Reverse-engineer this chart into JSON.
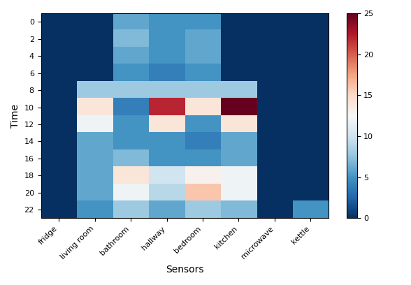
{
  "sensors": [
    "fridge",
    "living room",
    "bathroom",
    "hallway",
    "bedroom",
    "kitchen",
    "microwave",
    "kettle"
  ],
  "vmin": 0,
  "vmax": 25,
  "colormap": "RdBu_r",
  "xlabel": "Sensors",
  "ylabel": "Time",
  "ytick_labels": [
    "0",
    "2",
    "4",
    "6",
    "8",
    "10",
    "12",
    "14",
    "16",
    "18",
    "20",
    "22"
  ],
  "matrix": [
    [
      0,
      0,
      6,
      5,
      5,
      0,
      0,
      0
    ],
    [
      0,
      0,
      7,
      5,
      6,
      0,
      0,
      0
    ],
    [
      0,
      0,
      6,
      5,
      6,
      0,
      0,
      0
    ],
    [
      0,
      0,
      5,
      4,
      5,
      0,
      0,
      0
    ],
    [
      0,
      8,
      8,
      8,
      8,
      8,
      0,
      0
    ],
    [
      0,
      14,
      4,
      22,
      14,
      25,
      0,
      0
    ],
    [
      0,
      12,
      5,
      14,
      5,
      14,
      0,
      0
    ],
    [
      0,
      6,
      5,
      5,
      4,
      6,
      0,
      0
    ],
    [
      0,
      6,
      7,
      5,
      5,
      6,
      0,
      0
    ],
    [
      0,
      6,
      14,
      10,
      13,
      12,
      0,
      0
    ],
    [
      0,
      6,
      12,
      9,
      16,
      12,
      0,
      0
    ],
    [
      0,
      5,
      8,
      6,
      8,
      7,
      0,
      5
    ]
  ],
  "figsize": [
    5.88,
    4.08
  ],
  "dpi": 100
}
